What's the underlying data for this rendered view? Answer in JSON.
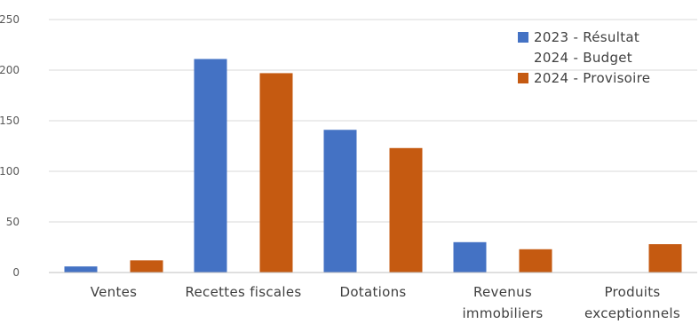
{
  "chart_data": {
    "type": "bar",
    "categories": [
      [
        "Ventes"
      ],
      [
        "Recettes fiscales"
      ],
      [
        "Dotations"
      ],
      [
        "Revenus",
        "immobiliers"
      ],
      [
        "Produits",
        "exceptionnels"
      ]
    ],
    "series": [
      {
        "name": "2023 - Résultat",
        "color": "#4472C4",
        "values": [
          6,
          211,
          141,
          30,
          null
        ]
      },
      {
        "name": "2024 - Budget",
        "color": null,
        "values": [
          null,
          null,
          null,
          null,
          null
        ]
      },
      {
        "name": "2024 - Provisoire",
        "color": "#C55A11",
        "values": [
          12,
          197,
          123,
          23,
          28
        ]
      }
    ],
    "ylim": [
      0,
      250
    ],
    "yticks": [
      0,
      50,
      100,
      150,
      200,
      250
    ],
    "grid": true,
    "legend_position": "top-right"
  }
}
